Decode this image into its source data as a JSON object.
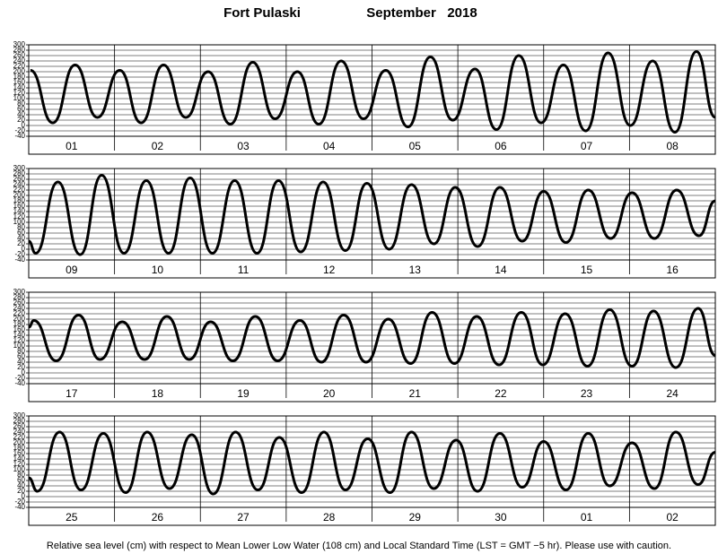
{
  "title": {
    "station": "Fort Pulaski",
    "date": "September   2018"
  },
  "caption": "Relative sea level (cm) with respect to Mean Lower Low Water (108 cm) and Local Standard Time (LST = GMT −5 hr). Please use with caution.",
  "chart_data": [
    {
      "type": "line",
      "categories": [
        "01",
        "02",
        "03",
        "04",
        "05",
        "06",
        "07",
        "08"
      ],
      "x": [
        0.02,
        0.28,
        0.54,
        0.8,
        1.06,
        1.31,
        1.57,
        1.83,
        2.09,
        2.35,
        2.61,
        2.87,
        3.13,
        3.38,
        3.64,
        3.9,
        4.16,
        4.42,
        4.68,
        4.94,
        5.2,
        5.45,
        5.71,
        5.97,
        6.23,
        6.49,
        6.75,
        7.01,
        7.27,
        7.53,
        7.78,
        8
      ],
      "series": [
        {
          "color": "#000000",
          "values": [
            205,
            10,
            225,
            30,
            205,
            10,
            225,
            30,
            200,
            5,
            235,
            25,
            200,
            5,
            240,
            25,
            205,
            -5,
            255,
            20,
            210,
            -15,
            260,
            10,
            225,
            -20,
            270,
            0,
            240,
            -25,
            275,
            30
          ]
        }
      ],
      "xlim": [
        0,
        8
      ],
      "ylim": [
        -40,
        300
      ],
      "yticks": [
        -40,
        -20,
        0,
        20,
        40,
        60,
        80,
        100,
        120,
        140,
        160,
        180,
        200,
        220,
        240,
        260,
        280,
        300
      ],
      "grid": true
    },
    {
      "type": "line",
      "categories": [
        "09",
        "10",
        "11",
        "12",
        "13",
        "14",
        "15",
        "16"
      ],
      "x": [
        0,
        0.08,
        0.34,
        0.6,
        0.85,
        1.11,
        1.37,
        1.63,
        1.88,
        2.14,
        2.4,
        2.66,
        2.91,
        3.17,
        3.43,
        3.69,
        3.94,
        4.2,
        4.46,
        4.72,
        4.97,
        5.23,
        5.49,
        5.75,
        6.0,
        6.26,
        6.52,
        6.78,
        7.03,
        7.29,
        7.55,
        7.81,
        8
      ],
      "series": [
        {
          "color": "#000000",
          "values": [
            30,
            -15,
            250,
            -20,
            275,
            -15,
            255,
            -15,
            265,
            -15,
            255,
            -15,
            255,
            -10,
            250,
            -5,
            245,
            0,
            240,
            20,
            230,
            10,
            230,
            30,
            215,
            25,
            220,
            40,
            210,
            40,
            220,
            50,
            180
          ]
        }
      ],
      "xlim": [
        0,
        8
      ],
      "ylim": [
        -40,
        300
      ],
      "yticks": [
        -40,
        -20,
        0,
        20,
        40,
        60,
        80,
        100,
        120,
        140,
        160,
        180,
        200,
        220,
        240,
        260,
        280,
        300
      ],
      "grid": true
    },
    {
      "type": "line",
      "categories": [
        "17",
        "18",
        "19",
        "20",
        "21",
        "22",
        "23",
        "24"
      ],
      "x": [
        0,
        0.06,
        0.32,
        0.58,
        0.83,
        1.09,
        1.35,
        1.61,
        1.87,
        2.12,
        2.38,
        2.64,
        2.9,
        3.16,
        3.41,
        3.67,
        3.93,
        4.19,
        4.45,
        4.7,
        4.96,
        5.22,
        5.48,
        5.74,
        5.99,
        6.25,
        6.51,
        6.77,
        7.03,
        7.28,
        7.54,
        7.8,
        8
      ],
      "series": [
        {
          "color": "#000000",
          "values": [
            170,
            195,
            45,
            215,
            50,
            190,
            50,
            210,
            50,
            190,
            45,
            210,
            45,
            195,
            40,
            215,
            40,
            200,
            35,
            225,
            35,
            210,
            30,
            225,
            30,
            220,
            25,
            235,
            25,
            230,
            20,
            240,
            65
          ]
        }
      ],
      "xlim": [
        0,
        8
      ],
      "ylim": [
        -40,
        300
      ],
      "yticks": [
        -40,
        -20,
        0,
        20,
        40,
        60,
        80,
        100,
        120,
        140,
        160,
        180,
        200,
        220,
        240,
        260,
        280,
        300
      ],
      "grid": true
    },
    {
      "type": "line",
      "categories": [
        "25",
        "26",
        "27",
        "28",
        "29",
        "30",
        "01",
        "02"
      ],
      "x": [
        0,
        0.1,
        0.36,
        0.61,
        0.87,
        1.13,
        1.38,
        1.64,
        1.9,
        2.15,
        2.41,
        2.67,
        2.92,
        3.18,
        3.44,
        3.69,
        3.95,
        4.21,
        4.46,
        4.72,
        4.98,
        5.23,
        5.49,
        5.75,
        6.0,
        6.26,
        6.52,
        6.77,
        7.03,
        7.29,
        7.54,
        7.8,
        8
      ],
      "series": [
        {
          "color": "#000000",
          "values": [
            70,
            20,
            240,
            25,
            235,
            15,
            240,
            30,
            230,
            10,
            240,
            25,
            220,
            15,
            240,
            25,
            215,
            15,
            240,
            30,
            210,
            20,
            235,
            35,
            205,
            25,
            235,
            40,
            200,
            30,
            240,
            45,
            165
          ]
        }
      ],
      "xlim": [
        0,
        8
      ],
      "ylim": [
        -40,
        300
      ],
      "yticks": [
        -40,
        -20,
        0,
        20,
        40,
        60,
        80,
        100,
        120,
        140,
        160,
        180,
        200,
        220,
        240,
        260,
        280,
        300
      ],
      "grid": true
    }
  ]
}
